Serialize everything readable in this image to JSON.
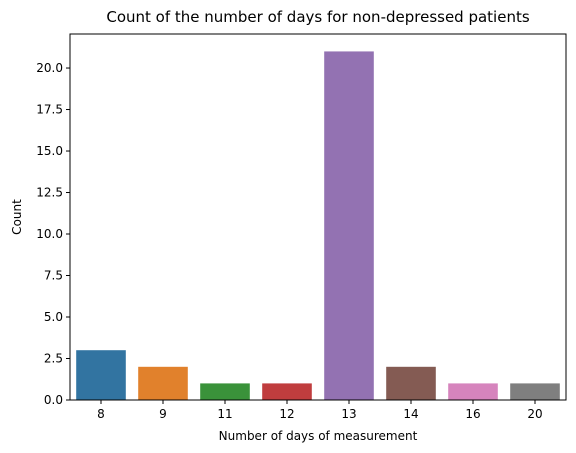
{
  "chart_data": {
    "type": "bar",
    "title": "Count of the number of days for non-depressed patients",
    "xlabel": "Number of days of measurement",
    "ylabel": "Count",
    "categories": [
      "8",
      "9",
      "11",
      "12",
      "13",
      "14",
      "16",
      "20"
    ],
    "values": [
      3,
      2,
      1,
      1,
      21,
      2,
      1,
      1
    ],
    "colors": [
      "#3274a1",
      "#e1812c",
      "#3a923a",
      "#c03d3e",
      "#9372b2",
      "#845b53",
      "#d684bd",
      "#7f7f7f"
    ],
    "ylim": [
      0,
      22.05
    ],
    "yticks": [
      "0.0",
      "2.5",
      "5.0",
      "7.5",
      "10.0",
      "12.5",
      "15.0",
      "17.5",
      "20.0"
    ],
    "grid": false,
    "legend": false
  }
}
